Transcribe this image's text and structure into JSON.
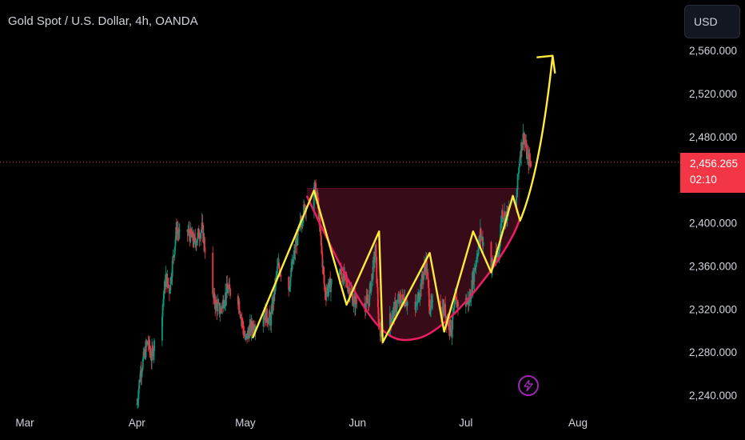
{
  "header": {
    "title": "Gold Spot / U.S. Dollar, 4h, OANDA"
  },
  "currency_button": {
    "label": "USD"
  },
  "price_tag": {
    "price": "2,456.265",
    "countdown": "02:10",
    "color": "#f23645"
  },
  "icons": {
    "alert": "lightning-bolt-icon"
  },
  "colors": {
    "background": "#000000",
    "up_candle": "#089981",
    "down_candle": "#f23645",
    "zigzag": "#ffeb3b",
    "cup_curve": "#e91e63",
    "cup_fill": "#4a0f1f",
    "current_price_line": "#f23645"
  },
  "chart_data": {
    "type": "candlestick",
    "title": "Gold Spot / U.S. Dollar, 4h, OANDA",
    "x_ticks": [
      "Mar",
      "Apr",
      "May",
      "Jun",
      "Jul",
      "Aug"
    ],
    "y_ticks": [
      "2,240.000",
      "2,280.000",
      "2,320.000",
      "2,360.000",
      "2,400.000",
      "2,480.000",
      "2,520.000",
      "2,560.000"
    ],
    "ylim": [
      2220,
      2590
    ],
    "current_price": 2456.265,
    "grid": false,
    "price_path": [
      [
        "2024-04-01",
        2232
      ],
      [
        "2024-04-02",
        2262
      ],
      [
        "2024-04-04",
        2290
      ],
      [
        "2024-04-05",
        2275
      ],
      [
        "2024-04-08",
        2320
      ],
      [
        "2024-04-09",
        2350
      ],
      [
        "2024-04-10",
        2338
      ],
      [
        "2024-04-12",
        2395
      ],
      [
        "2024-04-14",
        2375
      ],
      [
        "2024-04-15",
        2392
      ],
      [
        "2024-04-17",
        2382
      ],
      [
        "2024-04-19",
        2395
      ],
      [
        "2024-04-22",
        2330
      ],
      [
        "2024-04-24",
        2318
      ],
      [
        "2024-04-26",
        2338
      ],
      [
        "2024-04-29",
        2330
      ],
      [
        "2024-05-01",
        2290
      ],
      [
        "2024-05-02",
        2300
      ],
      [
        "2024-05-06",
        2316
      ],
      [
        "2024-05-08",
        2310
      ],
      [
        "2024-05-10",
        2360
      ],
      [
        "2024-05-13",
        2340
      ],
      [
        "2024-05-15",
        2380
      ],
      [
        "2024-05-17",
        2410
      ],
      [
        "2024-05-20",
        2435
      ],
      [
        "2024-05-21",
        2420
      ],
      [
        "2024-05-23",
        2335
      ],
      [
        "2024-05-27",
        2355
      ],
      [
        "2024-05-29",
        2345
      ],
      [
        "2024-05-31",
        2327
      ],
      [
        "2024-06-04",
        2325
      ],
      [
        "2024-06-06",
        2375
      ],
      [
        "2024-06-07",
        2298
      ],
      [
        "2024-06-10",
        2310
      ],
      [
        "2024-06-12",
        2325
      ],
      [
        "2024-06-14",
        2330
      ],
      [
        "2024-06-17",
        2318
      ],
      [
        "2024-06-20",
        2364
      ],
      [
        "2024-06-21",
        2322
      ],
      [
        "2024-06-25",
        2320
      ],
      [
        "2024-06-27",
        2300
      ],
      [
        "2024-06-28",
        2325
      ],
      [
        "2024-07-02",
        2328
      ],
      [
        "2024-07-05",
        2390
      ],
      [
        "2024-07-08",
        2360
      ],
      [
        "2024-07-10",
        2370
      ],
      [
        "2024-07-11",
        2410
      ],
      [
        "2024-07-12",
        2405
      ],
      [
        "2024-07-15",
        2425
      ],
      [
        "2024-07-16",
        2465
      ],
      [
        "2024-07-17",
        2482
      ],
      [
        "2024-07-18",
        2460
      ],
      [
        "2024-07-19",
        2456
      ]
    ],
    "annotations": {
      "zigzag": [
        [
          "2024-05-03",
          2293
        ],
        [
          "2024-05-20",
          2430
        ],
        [
          "2024-05-29",
          2324
        ],
        [
          "2024-06-07",
          2392
        ],
        [
          "2024-06-08",
          2289
        ],
        [
          "2024-06-21",
          2372
        ],
        [
          "2024-06-25",
          2299
        ],
        [
          "2024-07-03",
          2392
        ],
        [
          "2024-07-08",
          2354
        ],
        [
          "2024-07-14",
          2425
        ],
        [
          "2024-07-16",
          2402
        ],
        [
          "2024-07-25",
          2555
        ]
      ],
      "cup_curve": [
        [
          "2024-05-18",
          2425
        ],
        [
          "2024-06-05",
          2325
        ],
        [
          "2024-06-18",
          2293
        ],
        [
          "2024-07-02",
          2322
        ],
        [
          "2024-07-16",
          2405
        ]
      ],
      "cup_rim_price": 2432
    }
  }
}
